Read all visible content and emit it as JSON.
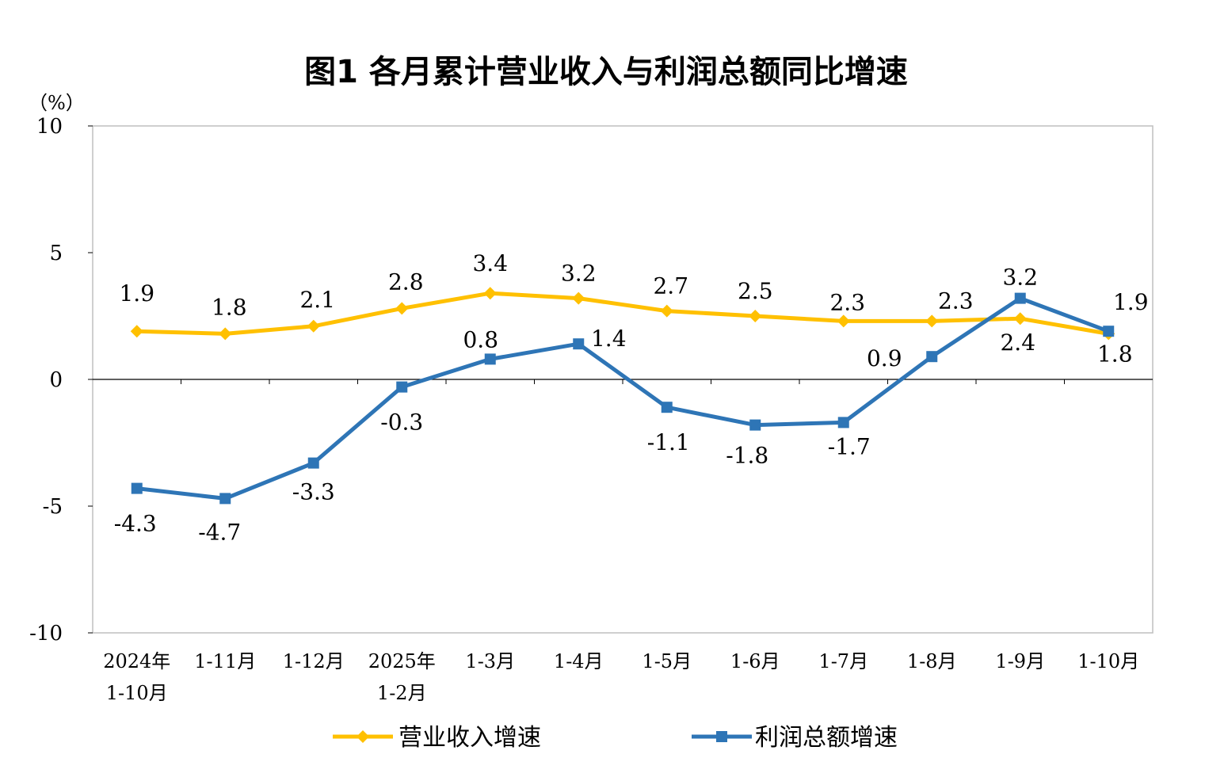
{
  "chart_data": {
    "type": "line",
    "title": "图1  各月累计营业收入与利润总额同比增速",
    "yunit": "（%）",
    "ylim": [
      -10,
      10
    ],
    "yticks": [
      10,
      5,
      0,
      -5,
      -10
    ],
    "categories": [
      [
        "2024年",
        "1-10月"
      ],
      [
        "1-11月"
      ],
      [
        "1-12月"
      ],
      [
        "2025年",
        "1-2月"
      ],
      [
        "1-3月"
      ],
      [
        "1-4月"
      ],
      [
        "1-5月"
      ],
      [
        "1-6月"
      ],
      [
        "1-7月"
      ],
      [
        "1-8月"
      ],
      [
        "1-9月"
      ],
      [
        "1-10月"
      ]
    ],
    "series": [
      {
        "name": "营业收入增速",
        "color": "#FFC000",
        "marker": "diamond",
        "values": [
          1.9,
          1.8,
          2.1,
          2.8,
          3.4,
          3.2,
          2.7,
          2.5,
          2.3,
          2.3,
          2.4,
          1.8
        ],
        "labels": [
          "1.9",
          "1.8",
          "2.1",
          "2.8",
          "3.4",
          "3.2",
          "2.7",
          "2.5",
          "2.3",
          "2.3",
          "2.4",
          "1.8"
        ]
      },
      {
        "name": "利润总额增速",
        "color": "#2E75B6",
        "marker": "square",
        "values": [
          -4.3,
          -4.7,
          -3.3,
          -0.3,
          0.8,
          1.4,
          -1.1,
          -1.8,
          -1.7,
          0.9,
          3.2,
          1.9
        ],
        "labels": [
          "-4.3",
          "-4.7",
          "-3.3",
          "-0.3",
          "0.8",
          "1.4",
          "-1.1",
          "-1.8",
          "-1.7",
          "0.9",
          "3.2",
          "1.9"
        ]
      }
    ],
    "legend": "bottom"
  }
}
